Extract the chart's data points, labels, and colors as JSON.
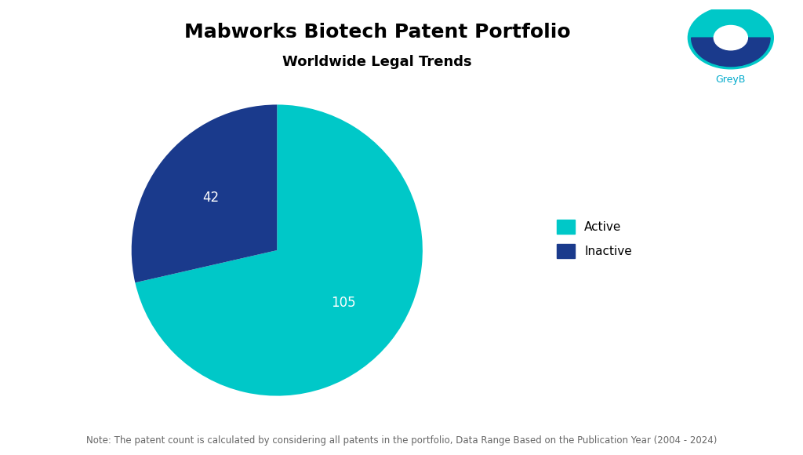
{
  "title": "Mabworks Biotech Patent Portfolio",
  "subtitle": "Worldwide Legal Trends",
  "labels": [
    "Active",
    "Inactive"
  ],
  "values": [
    105,
    42
  ],
  "colors": [
    "#00C8C8",
    "#1A3A8C"
  ],
  "note": "Note: The patent count is calculated by considering all patents in the portfolio, Data Range Based on the Publication Year (2004 - 2024)",
  "legend_active_color": "#00C8C8",
  "legend_inactive_color": "#1A3A8C",
  "background_color": "#ffffff",
  "startangle": 90,
  "label_fontsize": 12,
  "title_fontsize": 18,
  "subtitle_fontsize": 13,
  "note_fontsize": 8.5,
  "legend_fontsize": 11
}
